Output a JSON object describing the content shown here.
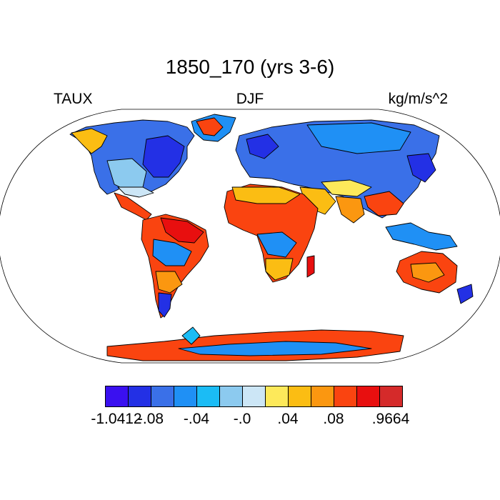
{
  "title": "1850_170 (yrs 3-6)",
  "left_label": "TAUX",
  "center_label": "DJF",
  "right_label": "kg/m/s^2",
  "colorbar": {
    "colors": [
      "#3a10f0",
      "#2330e5",
      "#3a70e8",
      "#1f90f5",
      "#1bbcf5",
      "#8ccaef",
      "#cce6f6",
      "#fde95a",
      "#fbbd13",
      "#fb9710",
      "#fa4410",
      "#e80f0f",
      "#d52a2a"
    ],
    "labels": [
      "-1.0412",
      "-.08",
      "-.04",
      "-.0",
      ".04",
      ".08",
      ".9664"
    ]
  }
}
